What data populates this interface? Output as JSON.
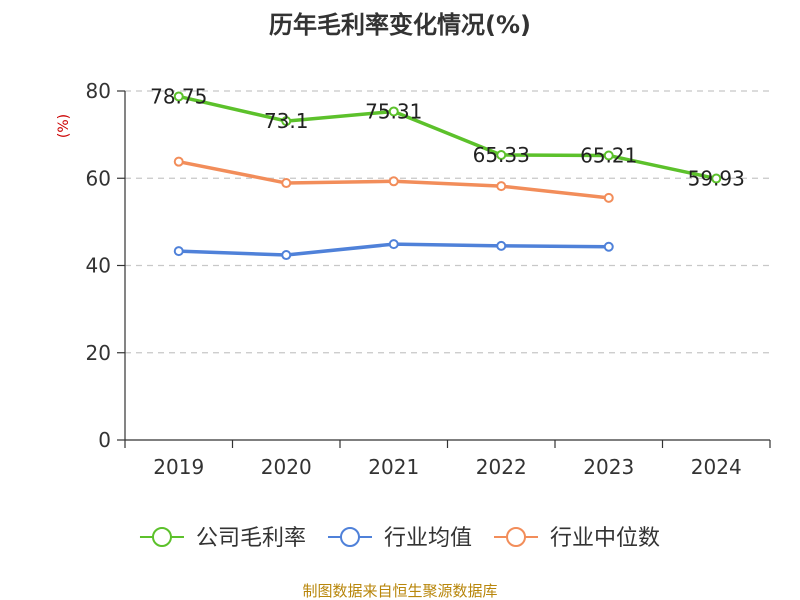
{
  "chart_data": {
    "type": "line",
    "title": "历年毛利率变化情况(%)",
    "ylabel": "(%)",
    "xlabel": "",
    "ylim": [
      0,
      80
    ],
    "yticks": [
      0,
      20,
      40,
      60,
      80
    ],
    "categories": [
      "2019",
      "2020",
      "2021",
      "2022",
      "2023",
      "2024"
    ],
    "grid": "horizontal-dashed",
    "legend_position": "bottom",
    "series": [
      {
        "name": "公司毛利率",
        "color": "#5cc12b",
        "values": [
          78.75,
          73.1,
          75.31,
          65.33,
          65.21,
          59.93
        ],
        "labels": [
          "78.75",
          "73.1",
          "75.31",
          "65.33",
          "65.21",
          "59.93"
        ]
      },
      {
        "name": "行业均值",
        "color": "#4f81d9",
        "values": [
          43.3,
          42.4,
          44.9,
          44.5,
          44.3,
          null
        ]
      },
      {
        "name": "行业中位数",
        "color": "#f28d5a",
        "values": [
          63.8,
          58.9,
          59.3,
          58.2,
          55.5,
          null
        ]
      }
    ]
  },
  "source": "制图数据来自恒生聚源数据库"
}
